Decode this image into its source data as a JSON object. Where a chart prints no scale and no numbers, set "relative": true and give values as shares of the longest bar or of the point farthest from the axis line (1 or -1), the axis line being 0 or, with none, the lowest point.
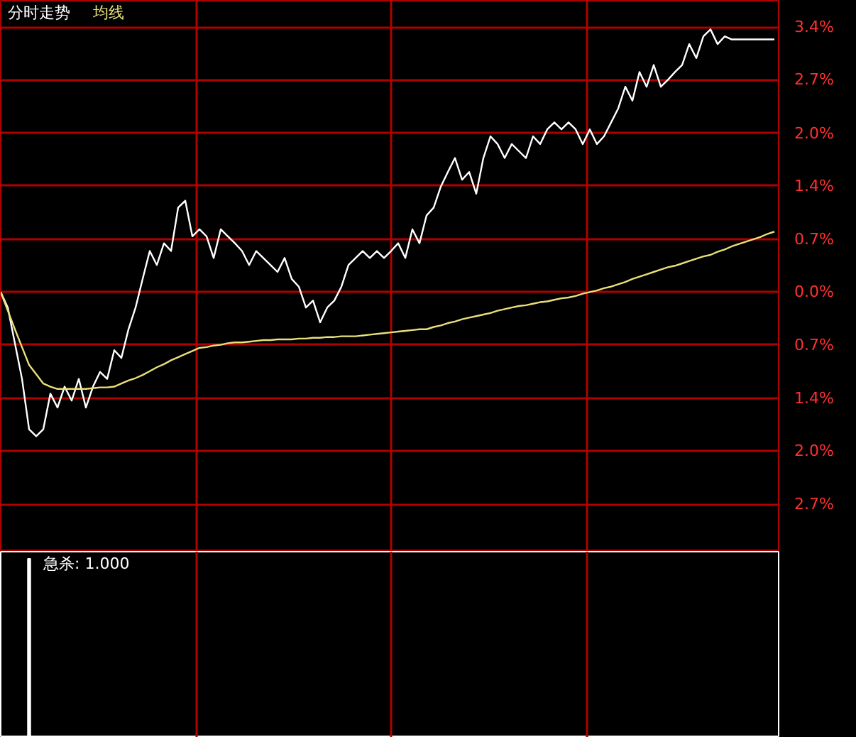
{
  "chart_data": [
    {
      "type": "line",
      "title": "分时走势",
      "relative": false,
      "categories": [
        null,
        null,
        null,
        null,
        null,
        null,
        null,
        null,
        null,
        null,
        null,
        null,
        null,
        null,
        null,
        null,
        null,
        null,
        null,
        null,
        null,
        null,
        null,
        null,
        null,
        null,
        null,
        null,
        null,
        null,
        null,
        null,
        null,
        null,
        null,
        null,
        null,
        null,
        null,
        null,
        null,
        null,
        null,
        null,
        null,
        null,
        null,
        null,
        null,
        null,
        null,
        null,
        null,
        null,
        null,
        null,
        null,
        null,
        null,
        null,
        null,
        null,
        null,
        null,
        null,
        null,
        null,
        null,
        null,
        null,
        null,
        null,
        null,
        null,
        null,
        null,
        null,
        null,
        null,
        null,
        null,
        null,
        null,
        null,
        null,
        null,
        null,
        null,
        null,
        null,
        null,
        null,
        null,
        null,
        null,
        null,
        null,
        null,
        null,
        null,
        null,
        null,
        null,
        null,
        null,
        null,
        null,
        null,
        null,
        null
      ],
      "series": [
        {
          "color": "#ffffff",
          "values": [
            0,
            -0.2,
            -0.66,
            -1.12,
            -1.77,
            -1.86,
            -1.77,
            -1.31,
            -1.49,
            -1.22,
            -1.4,
            -1.12,
            -1.49,
            -1.22,
            -1.03,
            -1.12,
            -0.75,
            -0.85,
            -0.48,
            -0.2,
            0.17,
            0.53,
            0.35,
            0.63,
            0.53,
            1.09,
            1.18,
            0.72,
            0.81,
            0.72,
            0.44,
            0.81,
            0.72,
            0.63,
            0.53,
            0.35,
            0.53,
            0.44,
            0.35,
            0.26,
            0.44,
            0.17,
            0.07,
            -0.2,
            -0.11,
            -0.39,
            -0.2,
            -0.11,
            0.07,
            0.35,
            0.44,
            0.53,
            0.44,
            0.53,
            0.44,
            0.53,
            0.63,
            0.44,
            0.81,
            0.63,
            0.99,
            1.09,
            1.36,
            1.55,
            1.73,
            1.45,
            1.55,
            1.27,
            1.73,
            2.01,
            1.91,
            1.73,
            1.91,
            1.82,
            1.73,
            2.01,
            1.91,
            2.1,
            2.19,
            2.1,
            2.19,
            2.1,
            1.91,
            2.1,
            1.91,
            2.01,
            2.19,
            2.37,
            2.65,
            2.47,
            2.84,
            2.65,
            2.93,
            2.65,
            2.74,
            2.84,
            2.93,
            3.2,
            3.02,
            3.3,
            3.39,
            3.2,
            3.3,
            3.26,
            3.26,
            3.26,
            3.26,
            3.26,
            3.26,
            3.26
          ]
        },
        {
          "name": "均线",
          "color": "#e8e07a",
          "values": [
            0,
            -0.24,
            -0.48,
            -0.71,
            -0.94,
            -1.06,
            -1.18,
            -1.22,
            -1.25,
            -1.25,
            -1.25,
            -1.25,
            -1.25,
            -1.24,
            -1.23,
            -1.23,
            -1.22,
            -1.18,
            -1.14,
            -1.11,
            -1.07,
            -1.02,
            -0.97,
            -0.93,
            -0.88,
            -0.84,
            -0.8,
            -0.76,
            -0.72,
            -0.71,
            -0.69,
            -0.68,
            -0.66,
            -0.65,
            -0.65,
            -0.64,
            -0.63,
            -0.62,
            -0.62,
            -0.61,
            -0.61,
            -0.61,
            -0.6,
            -0.6,
            -0.59,
            -0.59,
            -0.58,
            -0.58,
            -0.57,
            -0.57,
            -0.57,
            -0.56,
            -0.55,
            -0.54,
            -0.53,
            -0.52,
            -0.51,
            -0.5,
            -0.49,
            -0.48,
            -0.48,
            -0.45,
            -0.43,
            -0.4,
            -0.38,
            -0.35,
            -0.33,
            -0.31,
            -0.29,
            -0.27,
            -0.24,
            -0.22,
            -0.2,
            -0.18,
            -0.17,
            -0.15,
            -0.13,
            -0.12,
            -0.1,
            -0.08,
            -0.07,
            -0.05,
            -0.02,
            0,
            0.02,
            0.05,
            0.07,
            0.1,
            0.13,
            0.17,
            0.2,
            0.23,
            0.26,
            0.29,
            0.32,
            0.34,
            0.37,
            0.4,
            0.43,
            0.46,
            0.48,
            0.52,
            0.55,
            0.59,
            0.62,
            0.65,
            0.68,
            0.71,
            0.75,
            0.78
          ]
        }
      ],
      "ylim": [
        -3.35,
        3.76
      ],
      "yticks": [
        {
          "value": 3.42,
          "label": "3.4%"
        },
        {
          "value": 2.74,
          "label": "2.7%"
        },
        {
          "value": 2.05,
          "label": "2.0%"
        },
        {
          "value": 1.37,
          "label": "1.4%"
        },
        {
          "value": 0.68,
          "label": "0.7%"
        },
        {
          "value": 0,
          "label": "0.0%"
        },
        {
          "value": -0.68,
          "label": "0.7%"
        },
        {
          "value": -1.37,
          "label": "1.4%"
        },
        {
          "value": -2.05,
          "label": "2.0%"
        },
        {
          "value": -2.74,
          "label": "2.7%"
        }
      ],
      "grid": true,
      "legend": "top left",
      "marker": "none",
      "line_style": "solid"
    },
    {
      "type": "bar",
      "title": "急杀: 1.000",
      "relative": true,
      "color": "#ffffff",
      "categories": [
        null,
        null,
        null,
        null,
        null,
        null,
        null,
        null,
        null,
        null,
        null,
        null,
        null,
        null,
        null,
        null,
        null,
        null,
        null,
        null,
        null,
        null,
        null,
        null,
        null,
        null,
        null,
        null,
        null,
        null,
        null,
        null,
        null,
        null,
        null,
        null,
        null,
        null,
        null,
        null,
        null,
        null,
        null,
        null,
        null,
        null,
        null,
        null,
        null,
        null,
        null,
        null,
        null,
        null,
        null,
        null,
        null,
        null,
        null,
        null,
        null,
        null,
        null,
        null,
        null,
        null,
        null,
        null,
        null,
        null,
        null,
        null,
        null,
        null,
        null,
        null,
        null,
        null,
        null,
        null,
        null,
        null,
        null,
        null,
        null,
        null,
        null,
        null,
        null,
        null,
        null,
        null,
        null,
        null,
        null,
        null,
        null,
        null,
        null,
        null,
        null,
        null,
        null,
        null,
        null,
        null,
        null,
        null,
        null,
        null
      ],
      "values": [
        null,
        null,
        null,
        null,
        1,
        null,
        null,
        null,
        null,
        null,
        null,
        null,
        null,
        null,
        null,
        null,
        null,
        null,
        null,
        null,
        null,
        null,
        null,
        null,
        null,
        null,
        null,
        null,
        null,
        null,
        null,
        null,
        null,
        null,
        null,
        null,
        null,
        null,
        null,
        null,
        null,
        null,
        null,
        null,
        null,
        null,
        null,
        null,
        null,
        null,
        null,
        null,
        null,
        null,
        null,
        null,
        null,
        null,
        null,
        null,
        null,
        null,
        null,
        null,
        null,
        null,
        null,
        null,
        null,
        null,
        null,
        null,
        null,
        null,
        null,
        null,
        null,
        null,
        null,
        null,
        null,
        null,
        null,
        null,
        null,
        null,
        null,
        null,
        null,
        null,
        null,
        null,
        null,
        null,
        null,
        null,
        null,
        null,
        null,
        null,
        null,
        null,
        null,
        null,
        null,
        null,
        null,
        null,
        null,
        null
      ],
      "grid": "x"
    }
  ]
}
